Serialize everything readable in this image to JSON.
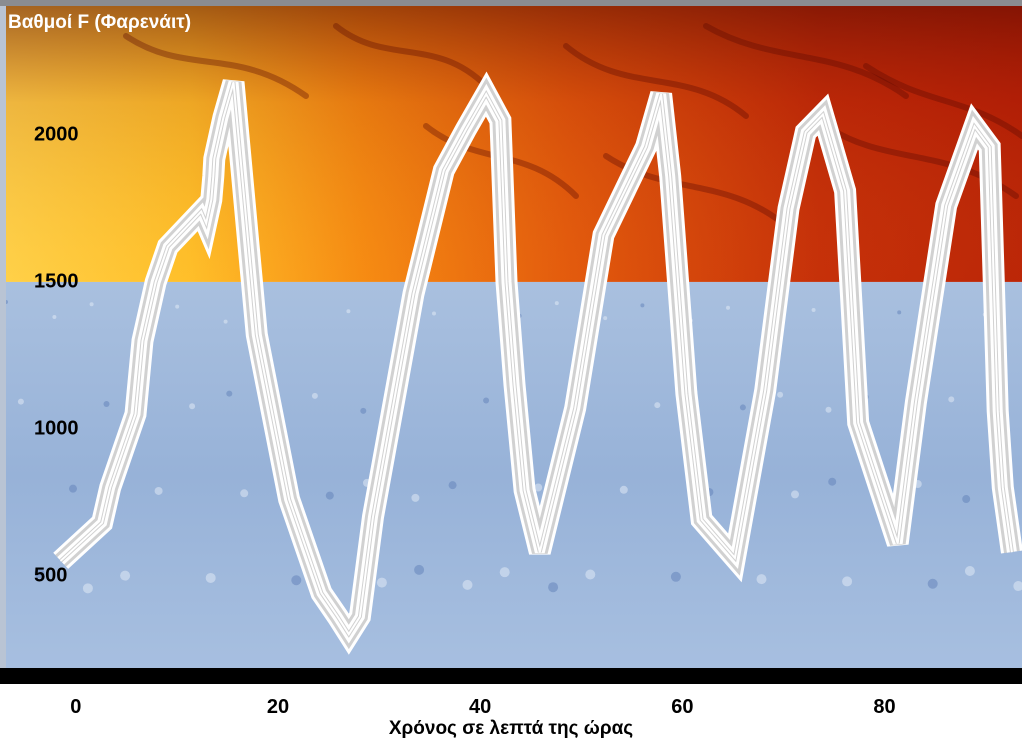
{
  "chart_data": {
    "type": "line",
    "title": "",
    "ylabel": "Βαθμοί F (Φαρενάιτ)",
    "xlabel": "Χρόνος σε λεπτά της ώρας",
    "x_ticks": [
      0,
      20,
      40,
      60,
      80
    ],
    "y_ticks": [
      500,
      1000,
      1500,
      2000
    ],
    "xlim": [
      -7.5,
      93.6
    ],
    "ylim": [
      185,
      2440
    ],
    "grid": false,
    "legend": "none",
    "background": {
      "split_value": 1500,
      "upper": "fire texture (yellow-orange-red)",
      "lower": "ice texture (light blue)"
    },
    "series": [
      {
        "x": [
          -1.5,
          2.6,
          3.4,
          5.9,
          6.6,
          7.9,
          9.1,
          12.4,
          12.9,
          13.4,
          13.6,
          13.7,
          14.6,
          15.6,
          17.9,
          21.1,
          24.3,
          25.9,
          27.0,
          28.1,
          29.4,
          33.4,
          36.4,
          38.6,
          40.6,
          42.0,
          42.6,
          43.4,
          44.4,
          45.9,
          49.4,
          52.2,
          56.4,
          57.9,
          58.8,
          60.4,
          61.9,
          65.2,
          68.2,
          70.5,
          72.2,
          73.9,
          76.1,
          77.4,
          81.3,
          83.1,
          86.1,
          88.9,
          90.4,
          91.2,
          91.7,
          92.6
        ],
        "y": [
          550,
          680,
          800,
          1050,
          1300,
          1500,
          1620,
          1740,
          1700,
          1780,
          1860,
          1920,
          2060,
          2180,
          1320,
          760,
          440,
          360,
          300,
          360,
          700,
          1460,
          1880,
          2020,
          2140,
          2050,
          1500,
          1150,
          790,
          580,
          1070,
          1660,
          1960,
          2140,
          1860,
          1120,
          690,
          560,
          1130,
          1750,
          2010,
          2070,
          1810,
          1020,
          610,
          1090,
          1760,
          2030,
          1960,
          1060,
          800,
          580
        ]
      }
    ]
  }
}
